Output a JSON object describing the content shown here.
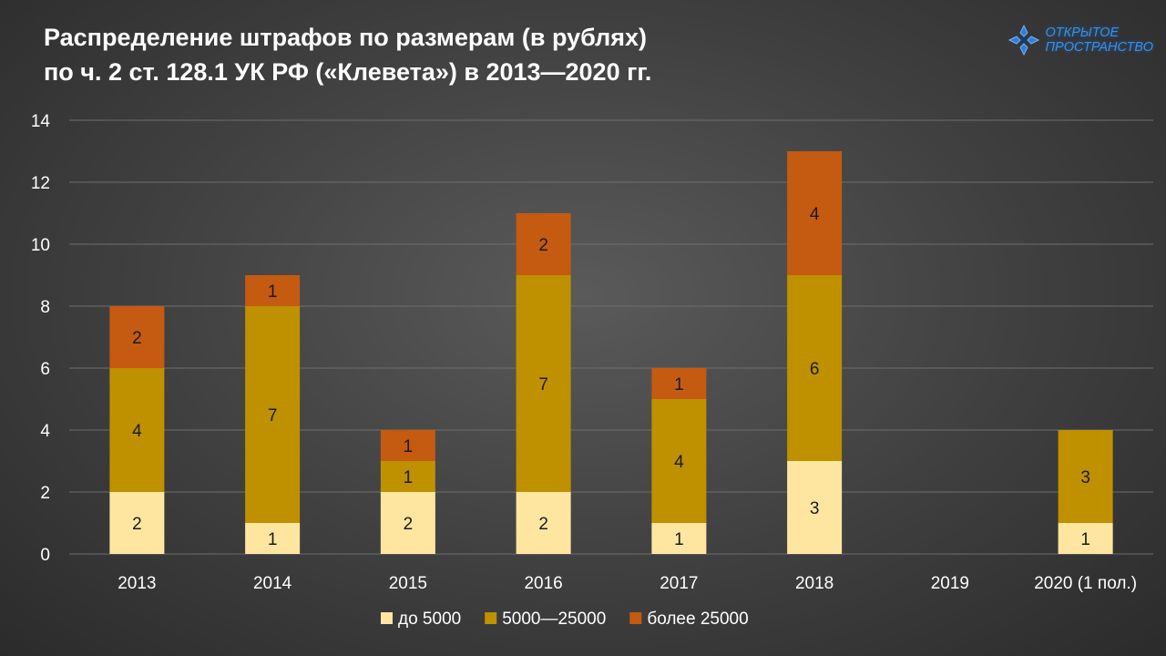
{
  "header": {
    "title_line1": "Распределение штрафов по размерам (в рублях)",
    "title_line2": "по ч. 2 ст. 128.1 УК РФ («Клевета») в 2013—2020 гг."
  },
  "logo": {
    "line1": "ОТКРЫТОЕ",
    "line2": "ПРОСТРАНСТВО",
    "icon": "star-cross-icon",
    "color": "#3b8fe0"
  },
  "chart_data": {
    "type": "bar",
    "stacked": true,
    "categories": [
      "2013",
      "2014",
      "2015",
      "2016",
      "2017",
      "2018",
      "2019",
      "2020 (1 пол.)"
    ],
    "series": [
      {
        "name": "до 5000",
        "color": "#ffe6a0",
        "values": [
          2,
          1,
          2,
          2,
          1,
          3,
          0,
          1
        ]
      },
      {
        "name": "5000—25000",
        "color": "#bf9000",
        "values": [
          4,
          7,
          1,
          7,
          4,
          6,
          0,
          3
        ]
      },
      {
        "name": "более 25000",
        "color": "#c55a11",
        "values": [
          2,
          1,
          1,
          2,
          1,
          4,
          0,
          0
        ]
      }
    ],
    "ylim": [
      0,
      14
    ],
    "yticks": [
      0,
      2,
      4,
      6,
      8,
      10,
      12,
      14
    ],
    "grid": true,
    "legend": "bottom",
    "data_labels": true,
    "title": "Распределение штрафов по размерам (в рублях) по ч. 2 ст. 128.1 УК РФ («Клевета») в 2013—2020 гг."
  }
}
